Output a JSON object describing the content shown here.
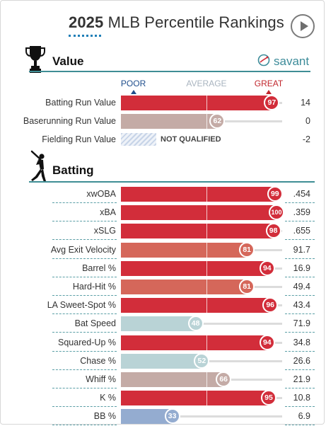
{
  "header": {
    "title_year": "2025",
    "title_rest": "MLB Percentile Rankings"
  },
  "brand": {
    "name": "savant"
  },
  "scale": {
    "poor": "POOR",
    "average": "AVERAGE",
    "great": "GREAT"
  },
  "colors": {
    "accent": "#3f8e95",
    "great": "#d22d3a",
    "good": "#d5675a",
    "slightly_above": "#c4aba6",
    "slightly_below": "#b9d3d6",
    "poor": "#94acd0",
    "poor_label": "#1f4e8c",
    "average_label": "#a9b4bf",
    "great_label": "#c1272d"
  },
  "sections": [
    {
      "title": "Value",
      "icon": "trophy-icon"
    },
    {
      "title": "Batting",
      "icon": "batter-icon"
    }
  ],
  "chart_data": {
    "type": "bar",
    "orientation": "horizontal",
    "xlim": [
      0,
      100
    ],
    "groups": [
      {
        "section": "Value",
        "rows": [
          {
            "label": "Batting Run Value",
            "percentile": 97,
            "value": "14"
          },
          {
            "label": "Baserunning Run Value",
            "percentile": 62,
            "value": "0"
          },
          {
            "label": "Fielding Run Value",
            "percentile": null,
            "status": "NOT QUALIFIED",
            "value": "-2"
          }
        ]
      },
      {
        "section": "Batting",
        "rows": [
          {
            "label": "xwOBA",
            "percentile": 99,
            "value": ".454"
          },
          {
            "label": "xBA",
            "percentile": 100,
            "value": ".359"
          },
          {
            "label": "xSLG",
            "percentile": 98,
            "value": ".655"
          },
          {
            "label": "Avg Exit Velocity",
            "percentile": 81,
            "value": "91.7"
          },
          {
            "label": "Barrel %",
            "percentile": 94,
            "value": "16.9"
          },
          {
            "label": "Hard-Hit %",
            "percentile": 81,
            "value": "49.4"
          },
          {
            "label": "LA Sweet-Spot %",
            "percentile": 96,
            "value": "43.4"
          },
          {
            "label": "Bat Speed",
            "percentile": 48,
            "value": "71.9"
          },
          {
            "label": "Squared-Up %",
            "percentile": 94,
            "value": "34.8"
          },
          {
            "label": "Chase %",
            "percentile": 52,
            "value": "26.6"
          },
          {
            "label": "Whiff %",
            "percentile": 66,
            "value": "21.9"
          },
          {
            "label": "K %",
            "percentile": 95,
            "value": "10.8"
          },
          {
            "label": "BB %",
            "percentile": 33,
            "value": "6.9"
          }
        ]
      }
    ]
  }
}
